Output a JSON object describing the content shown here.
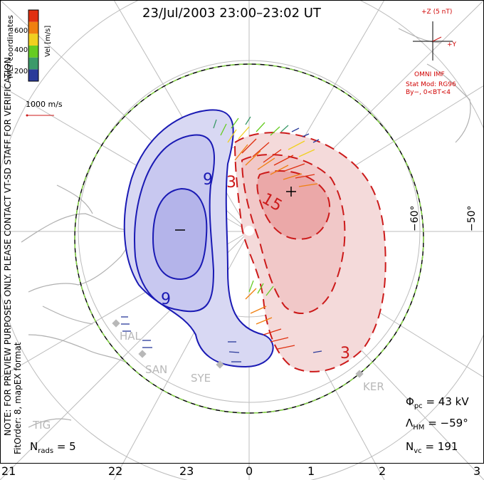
{
  "title": "23/Jul/2003 23:00–23:02 UT",
  "colorbar": {
    "unit_label": "Vel [m/s]",
    "tick_labels": [
      "200",
      "400",
      "600"
    ],
    "colors": [
      "#2a3a9a",
      "#3c9a6a",
      "#66cc22",
      "#f0d020",
      "#f08010",
      "#e03010"
    ]
  },
  "coord_label": "MLT coordinates",
  "velocity_legend": "1000 m/s",
  "imf": {
    "scale_label": "+Z (5 nT)",
    "y_label": "+Y",
    "source_label": "OMNI IMF",
    "model_label": "Stat Mod: RG96",
    "condition_label": "By−, 0<BT<4"
  },
  "side_note": "NOTE: FOR PREVIEW PURPOSES ONLY. PLEASE CONTACT VT-SD STAFF FOR VERIFICATION.",
  "fit_note": "FitOrder: 8, mapEX format",
  "stats": {
    "nrads_label": "N",
    "nrads_sub": "rads",
    "nrads_value": "= 5",
    "phi_label": "Φ",
    "phi_sub": "pc",
    "phi_value": "= 43 kV",
    "lambda_label": "Λ",
    "lambda_sub": "HM",
    "lambda_value": "= −59°",
    "nvc_label": "N",
    "nvc_sub": "vc",
    "nvc_value": "= 191"
  },
  "hour_labels": [
    "21",
    "22",
    "23",
    "0",
    "1",
    "2",
    "3"
  ],
  "latitude_labels": [
    "−60°",
    "−50°"
  ],
  "sites": [
    "HAL",
    "SAN",
    "SYE",
    "KER",
    "TIG"
  ],
  "contour_labels": [
    "9",
    "9",
    "3",
    "15",
    "3"
  ],
  "center_markers": [
    "−",
    "+"
  ],
  "colors": {
    "negative_fill": "#c9c9f0",
    "negative_line": "#1a1ab4",
    "positive_fill": "#f3c4c4",
    "positive_line": "#cc1a1a",
    "hmb": "#88dd44",
    "imf_text": "#d00000",
    "site": "#b8b8b8"
  }
}
